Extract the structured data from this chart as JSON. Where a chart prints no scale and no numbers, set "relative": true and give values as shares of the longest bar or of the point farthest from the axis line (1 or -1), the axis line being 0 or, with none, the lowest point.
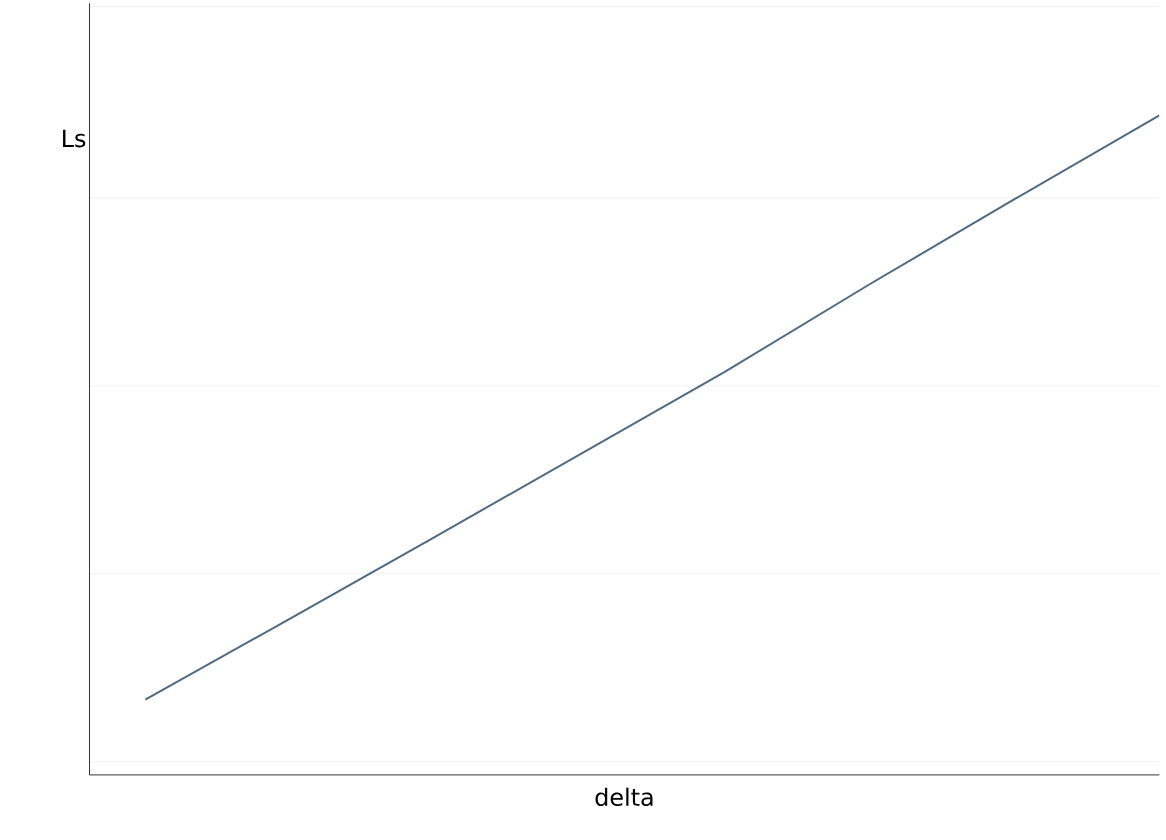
{
  "chart_data": {
    "type": "line",
    "xlabel": "delta",
    "ylabel": "Ls",
    "relative": true,
    "grid": "y",
    "categories": [
      null,
      null,
      null,
      null,
      null,
      null,
      null,
      null
    ],
    "series": [
      {
        "color": "#4f6a80",
        "values": [
          0.114,
          0.237,
          0.361,
          0.486,
          0.611,
          0.744,
          0.873,
          1.0
        ]
      }
    ]
  }
}
